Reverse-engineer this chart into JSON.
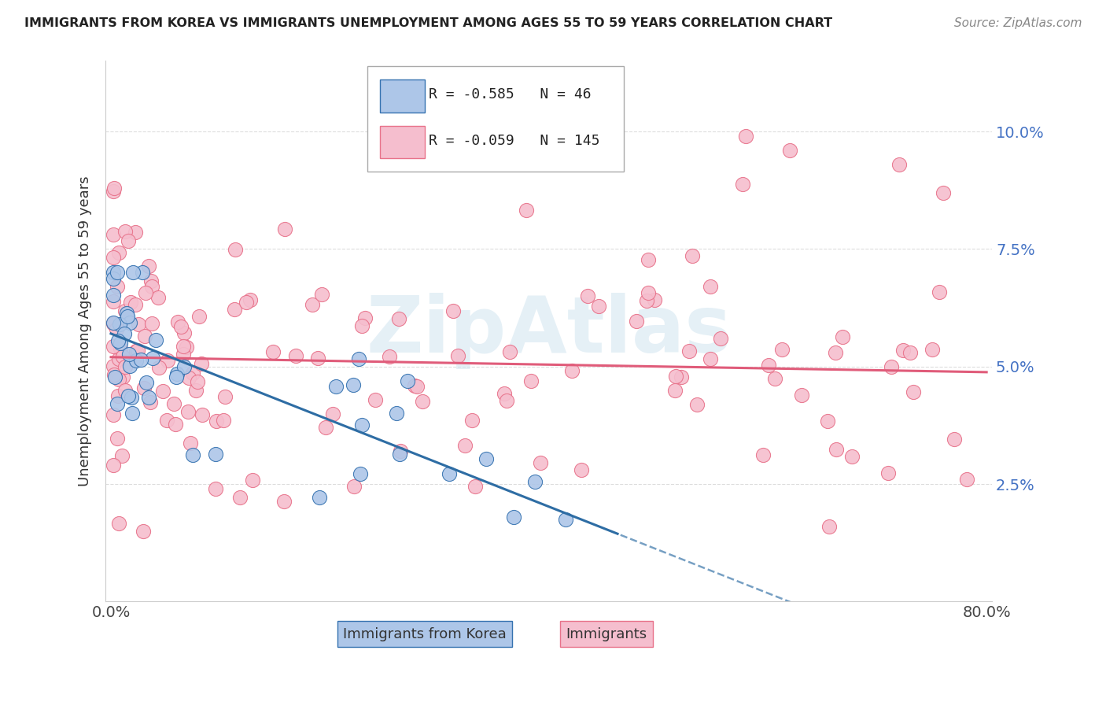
{
  "title": "IMMIGRANTS FROM KOREA VS IMMIGRANTS UNEMPLOYMENT AMONG AGES 55 TO 59 YEARS CORRELATION CHART",
  "source": "Source: ZipAtlas.com",
  "ylabel": "Unemployment Among Ages 55 to 59 years",
  "xlim": [
    0.0,
    0.8
  ],
  "ylim": [
    0.0,
    0.115
  ],
  "ytick_positions": [
    0.025,
    0.05,
    0.075,
    0.1
  ],
  "ytick_labels": [
    "2.5%",
    "5.0%",
    "7.5%",
    "10.0%"
  ],
  "blue_scatter_color": "#adc6e8",
  "blue_edge_color": "#3572b0",
  "pink_scatter_color": "#f5bece",
  "pink_edge_color": "#e8728a",
  "blue_line_color": "#2e6da4",
  "pink_line_color": "#e05c7a",
  "watermark": "ZipAtlas",
  "watermark_color": "#d0e4f0",
  "R_blue": "-0.585",
  "N_blue": "46",
  "R_pink": "-0.059",
  "N_pink": "145",
  "legend_blue_fill": "#adc6e8",
  "legend_blue_edge": "#3572b0",
  "legend_pink_fill": "#f5bece",
  "legend_pink_edge": "#e8728a",
  "title_color": "#222222",
  "source_color": "#888888",
  "yticklabel_color": "#4472c4",
  "axis_color": "#cccccc",
  "grid_color": "#dddddd"
}
